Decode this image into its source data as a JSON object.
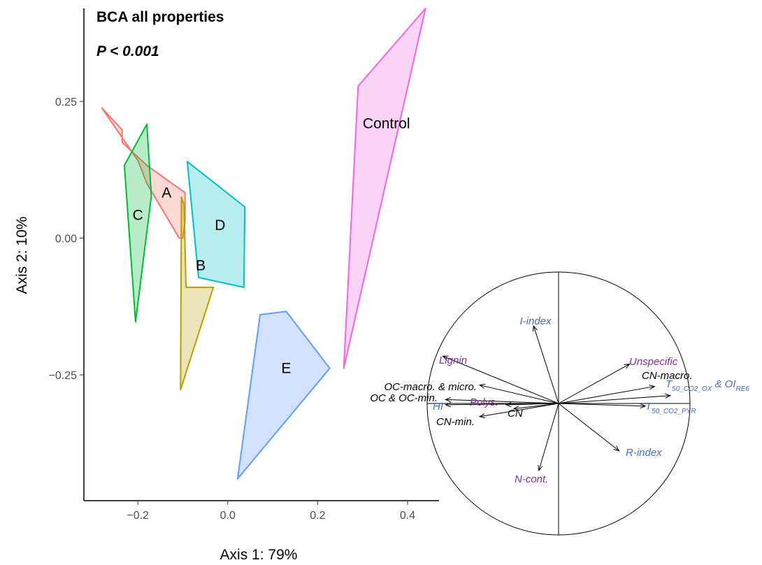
{
  "chart_data": [
    {
      "type": "scatter",
      "title": "BCA all properties",
      "subtitle": "P <  0.001",
      "xlabel": "Axis 1: 79%",
      "ylabel": "Axis 2: 10%",
      "xlim": [
        -0.32,
        0.47
      ],
      "ylim": [
        -0.48,
        0.42
      ],
      "xticks": [
        -0.2,
        0.0,
        0.2,
        0.4
      ],
      "xtick_labels": [
        "−0.2",
        "0.0",
        "0.2",
        "0.4"
      ],
      "yticks": [
        -0.25,
        0.0,
        0.25
      ],
      "ytick_labels": [
        "−0.25",
        "0.00",
        "0.25"
      ],
      "grid": false,
      "groups": [
        {
          "name": "A",
          "color": "#F8766D",
          "label_pos": [
            -0.136,
            0.083
          ],
          "hull": [
            [
              -0.28,
              0.238
            ],
            [
              -0.235,
              0.198
            ],
            [
              -0.235,
              0.175
            ],
            [
              -0.18,
              0.133
            ],
            [
              -0.095,
              0.083
            ],
            [
              -0.095,
              0.03
            ],
            [
              -0.1,
              0.0
            ],
            [
              -0.108,
              0.0
            ],
            [
              -0.18,
              0.1
            ],
            [
              -0.2,
              0.142
            ]
          ]
        },
        {
          "name": "B",
          "color": "#B79F00",
          "label_pos": [
            -0.06,
            -0.05
          ],
          "hull": [
            [
              -0.103,
              0.075
            ],
            [
              -0.097,
              0.06
            ],
            [
              -0.093,
              -0.09
            ],
            [
              -0.032,
              -0.09
            ],
            [
              -0.105,
              -0.277
            ]
          ]
        },
        {
          "name": "C",
          "color": "#00BA38",
          "label_pos": [
            -0.2,
            0.042
          ],
          "hull": [
            [
              -0.18,
              0.208
            ],
            [
              -0.17,
              0.077
            ],
            [
              -0.205,
              -0.153
            ],
            [
              -0.23,
              0.133
            ]
          ]
        },
        {
          "name": "D",
          "color": "#00BFC4",
          "label_pos": [
            -0.017,
            0.024
          ],
          "hull": [
            [
              -0.09,
              0.14
            ],
            [
              0.038,
              0.057
            ],
            [
              0.036,
              -0.09
            ],
            [
              -0.065,
              -0.072
            ]
          ]
        },
        {
          "name": "E",
          "color": "#619CFF",
          "label_pos": [
            0.13,
            -0.238
          ],
          "hull": [
            [
              0.072,
              -0.14
            ],
            [
              0.13,
              -0.134
            ],
            [
              0.227,
              -0.238
            ],
            [
              0.022,
              -0.44
            ]
          ]
        },
        {
          "name": "Control",
          "color": "#F564E3",
          "label_pos": [
            0.353,
            0.21
          ],
          "hull": [
            [
              0.44,
              0.42
            ],
            [
              0.29,
              0.278
            ],
            [
              0.258,
              -0.238
            ]
          ]
        }
      ]
    },
    {
      "type": "correlation-circle",
      "xlim": [
        -1,
        1
      ],
      "ylim": [
        -1,
        1
      ],
      "variables": [
        {
          "key": "I-index",
          "label": "I-index",
          "x": -0.19,
          "y": 0.59,
          "color": "#4A6DB0"
        },
        {
          "key": "Lignin",
          "label": "Lignin",
          "x": -0.88,
          "y": 0.36,
          "color": "#7B3294"
        },
        {
          "key": "Unspecific",
          "label": "Unspecific",
          "x": 0.54,
          "y": 0.3,
          "color": "#7B3294"
        },
        {
          "key": "CN-macro.",
          "label": "CN-macro.",
          "x": 0.73,
          "y": 0.13,
          "color": "#000000"
        },
        {
          "key": "T50_CO2_OX",
          "label": "T50_CO2_OX & OIRE6",
          "x": 0.85,
          "y": 0.06,
          "color": "#4A6DB0"
        },
        {
          "key": "OC-macro. & micro.",
          "label": "OC-macro. & micro.",
          "x": -0.6,
          "y": 0.14,
          "color": "#000000"
        },
        {
          "key": "OC & OC-min.",
          "label": "OC & OC-min.",
          "x": -0.86,
          "y": 0.03,
          "color": "#000000"
        },
        {
          "key": "HI",
          "label": "HI",
          "x": -0.86,
          "y": -0.01,
          "color": "#4A6DB0"
        },
        {
          "key": "Polys.",
          "label": "Polys.",
          "x": -0.4,
          "y": -0.01,
          "color": "#7B3294"
        },
        {
          "key": "CN",
          "label": "CN",
          "x": -0.34,
          "y": -0.04,
          "color": "#000000"
        },
        {
          "key": "CN-min.",
          "label": "CN-min.",
          "x": -0.6,
          "y": -0.1,
          "color": "#000000"
        },
        {
          "key": "T50_CO2_PYR",
          "label": "T50_CO2_PYR",
          "x": 0.66,
          "y": -0.02,
          "color": "#4A6DB0"
        },
        {
          "key": "R-index",
          "label": "R-index",
          "x": 0.46,
          "y": -0.36,
          "color": "#4A6DB0"
        },
        {
          "key": "N-cont.",
          "label": "N-cont.",
          "x": -0.15,
          "y": -0.51,
          "color": "#7B3294"
        }
      ]
    }
  ]
}
